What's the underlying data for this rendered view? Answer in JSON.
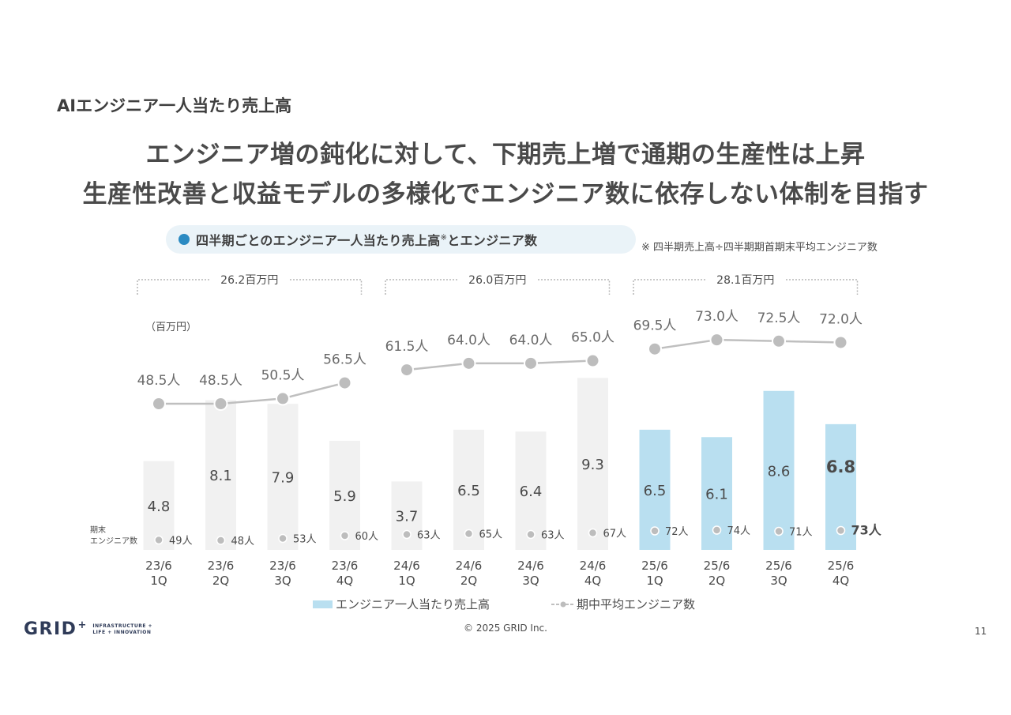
{
  "section_label": "AIエンジニア一人当たり売上高",
  "headline": {
    "line1": "エンジニア増の鈍化に対して、下期売上増で通期の生産性は上昇",
    "line2": "生産性改善と収益モデルの多様化でエンジニア数に依存しない体制を目指す"
  },
  "pill": {
    "title": "四半期ごとのエンジニア一人当たり売上高",
    "mark": "※",
    "title_suffix": "とエンジニア数"
  },
  "footnote": "※ 四半期売上高÷四半期期首期末平均エンジニア数",
  "chart_data": {
    "type": "bar",
    "unit_label": "（百万円）",
    "categories": [
      "23/6\n1Q",
      "23/6\n2Q",
      "23/6\n3Q",
      "23/6\n4Q",
      "24/6\n1Q",
      "24/6\n2Q",
      "24/6\n3Q",
      "24/6\n4Q",
      "25/6\n1Q",
      "25/6\n2Q",
      "25/6\n3Q",
      "25/6\n4Q"
    ],
    "bar_values": [
      4.8,
      8.1,
      7.9,
      5.9,
      3.7,
      6.5,
      6.4,
      9.3,
      6.5,
      6.1,
      8.6,
      6.8
    ],
    "bar_labels": [
      "4.8",
      "8.1",
      "7.9",
      "5.9",
      "3.7",
      "6.5",
      "6.4",
      "9.3",
      "6.5",
      "6.1",
      "8.6",
      "6.8"
    ],
    "line_values": [
      48.5,
      48.5,
      50.5,
      56.5,
      61.5,
      64.0,
      64.0,
      65.0,
      69.5,
      73.0,
      72.5,
      72.0
    ],
    "line_labels": [
      "48.5人",
      "48.5人",
      "50.5人",
      "56.5人",
      "61.5人",
      "64.0人",
      "64.0人",
      "65.0人",
      "69.5人",
      "73.0人",
      "72.5人",
      "72.0人"
    ],
    "end_engineers_label": "期末\nエンジニア数",
    "end_engineers": [
      49,
      48,
      53,
      60,
      63,
      65,
      63,
      67,
      72,
      74,
      71,
      73
    ],
    "end_engineers_labels": [
      "49人",
      "48人",
      "53人",
      "60人",
      "63人",
      "65人",
      "63人",
      "67人",
      "72人",
      "74人",
      "71人",
      "73人"
    ],
    "annual_totals": [
      "26.2百万円",
      "26.0百万円",
      "28.1百万円"
    ],
    "legend": {
      "bar": "エンジニア一人当たり売上高",
      "line": "期中平均エンジニア数"
    },
    "colors": {
      "bar_past": "#f1f1f1",
      "bar_current": "#b9dff0",
      "line": "#bfbfbf",
      "accent": "#2b8ac2"
    }
  },
  "footer": {
    "logo": "GRID",
    "logo_plus": "+",
    "logo_tagline_1": "INFRASTRUCTURE +",
    "logo_tagline_2": "LIFE + INNOVATION",
    "copyright": "© 2025 GRID Inc.",
    "page_number": "11"
  }
}
